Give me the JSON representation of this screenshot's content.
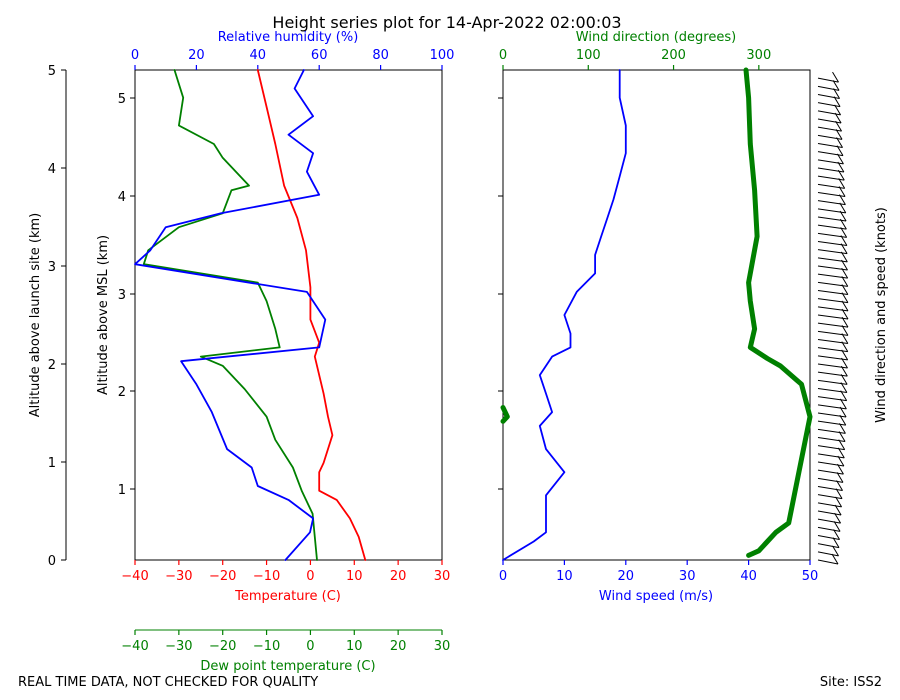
{
  "chart_data": {
    "type": "line",
    "title": "Height series plot for 14-Apr-2022 02:00:03",
    "footer_left": "REAL TIME DATA, NOT CHECKED FOR QUALITY",
    "footer_right": "Site: ISS2",
    "left_panel": {
      "outer_axis": {
        "label": "Altitude above launch site (km)",
        "range": [
          0,
          5
        ],
        "ticks": [
          "0",
          "1",
          "2",
          "3",
          "4",
          "5"
        ]
      },
      "inner_axis": {
        "label": "Altitude above MSL (km)",
        "ticks": [
          "1",
          "2",
          "3",
          "4",
          "5"
        ]
      },
      "humidity_axis": {
        "label": "Relative humidity (%)",
        "range": [
          0,
          100
        ],
        "ticks": [
          "0",
          "20",
          "40",
          "60",
          "80",
          "100"
        ],
        "color": "#0000ff"
      },
      "temperature_axis": {
        "label": "Temperature (C)",
        "range": [
          -40,
          30
        ],
        "ticks": [
          "−40",
          "−30",
          "−20",
          "−10",
          "0",
          "10",
          "20",
          "30"
        ],
        "color": "#ff0000"
      },
      "dewpoint_axis": {
        "label": "Dew point temperature (C)",
        "range": [
          -40,
          30
        ],
        "ticks": [
          "−40",
          "−30",
          "−20",
          "−10",
          "0",
          "10",
          "20",
          "30"
        ],
        "color": "#008000"
      },
      "series": [
        {
          "name": "Temperature",
          "color": "#ff0000",
          "units": "C",
          "points": [
            [
              12.5,
              0
            ],
            [
              11,
              0.25
            ],
            [
              9,
              0.45
            ],
            [
              6,
              0.65
            ],
            [
              2,
              0.75
            ],
            [
              2,
              0.95
            ],
            [
              3,
              1.05
            ],
            [
              5,
              1.35
            ],
            [
              4,
              1.55
            ],
            [
              3,
              1.8
            ],
            [
              1,
              2.2
            ],
            [
              2,
              2.35
            ],
            [
              0,
              2.6
            ],
            [
              0,
              2.95
            ],
            [
              -1,
              3.35
            ],
            [
              -3,
              3.7
            ],
            [
              -6,
              4.05
            ],
            [
              -8,
              4.5
            ],
            [
              -10,
              4.9
            ],
            [
              -12,
              5.3
            ]
          ]
        },
        {
          "name": "Dew point",
          "color": "#008000",
          "units": "C",
          "points": [
            [
              1.5,
              0
            ],
            [
              1,
              0.25
            ],
            [
              0.5,
              0.5
            ],
            [
              -2,
              0.75
            ],
            [
              -4,
              1.0
            ],
            [
              -8,
              1.3
            ],
            [
              -10,
              1.55
            ],
            [
              -15,
              1.85
            ],
            [
              -20,
              2.1
            ],
            [
              -25,
              2.2
            ],
            [
              -7,
              2.3
            ],
            [
              -8,
              2.5
            ],
            [
              -10,
              2.8
            ],
            [
              -12,
              3.0
            ],
            [
              -38,
              3.2
            ],
            [
              -37,
              3.35
            ],
            [
              -30,
              3.6
            ],
            [
              -20,
              3.75
            ],
            [
              -18,
              4.0
            ],
            [
              -14,
              4.05
            ],
            [
              -20,
              4.35
            ],
            [
              -22,
              4.5
            ],
            [
              -30,
              4.7
            ],
            [
              -29,
              5.0
            ],
            [
              -31,
              5.3
            ]
          ]
        },
        {
          "name": "Relative humidity",
          "color": "#0000ff",
          "units": "%",
          "points": [
            [
              49,
              0
            ],
            [
              57,
              0.3
            ],
            [
              58,
              0.45
            ],
            [
              50,
              0.65
            ],
            [
              40,
              0.8
            ],
            [
              38,
              1.0
            ],
            [
              30,
              1.2
            ],
            [
              25,
              1.6
            ],
            [
              20,
              1.9
            ],
            [
              15,
              2.15
            ],
            [
              60,
              2.3
            ],
            [
              62,
              2.6
            ],
            [
              56,
              2.9
            ],
            [
              0,
              3.2
            ],
            [
              5,
              3.35
            ],
            [
              10,
              3.6
            ],
            [
              28,
              3.75
            ],
            [
              60,
              3.95
            ],
            [
              56,
              4.2
            ],
            [
              58,
              4.4
            ],
            [
              50,
              4.6
            ],
            [
              58,
              4.8
            ],
            [
              52,
              5.1
            ],
            [
              55,
              5.3
            ]
          ]
        }
      ]
    },
    "right_panel": {
      "speed_axis": {
        "label": "Wind speed (m/s)",
        "range": [
          0,
          50
        ],
        "ticks": [
          "0",
          "10",
          "20",
          "30",
          "40",
          "50"
        ],
        "color": "#0000ff"
      },
      "direction_axis": {
        "label": "Wind direction (degrees)",
        "range": [
          0,
          360
        ],
        "ticks": [
          "0",
          "100",
          "200",
          "300"
        ],
        "color": "#008000"
      },
      "barb_label": "Wind direction and speed (knots)",
      "series": [
        {
          "name": "Wind speed",
          "color": "#0000ff",
          "units": "m/s",
          "points": [
            [
              0,
              0
            ],
            [
              5,
              0.2
            ],
            [
              7,
              0.3
            ],
            [
              7,
              0.7
            ],
            [
              10,
              0.95
            ],
            [
              7,
              1.2
            ],
            [
              6,
              1.45
            ],
            [
              8,
              1.6
            ],
            [
              7,
              1.8
            ],
            [
              6,
              2.0
            ],
            [
              8,
              2.2
            ],
            [
              11,
              2.3
            ],
            [
              11,
              2.45
            ],
            [
              10,
              2.65
            ],
            [
              12,
              2.9
            ],
            [
              15,
              3.1
            ],
            [
              15,
              3.3
            ],
            [
              16,
              3.5
            ],
            [
              17,
              3.7
            ],
            [
              18,
              3.9
            ],
            [
              19,
              4.15
            ],
            [
              20,
              4.4
            ],
            [
              20,
              4.7
            ],
            [
              19,
              5.0
            ],
            [
              19,
              5.3
            ]
          ]
        },
        {
          "name": "Wind direction",
          "color": "#008000",
          "units": "degrees",
          "points": [
            [
              0,
              1.5
            ],
            [
              5,
              1.55
            ],
            [
              0,
              1.65
            ]
          ]
        },
        {
          "name": "Wind direction",
          "color": "#008000",
          "units": "degrees",
          "points": [
            [
              288,
              0.05
            ],
            [
              300,
              0.1
            ],
            [
              310,
              0.2
            ],
            [
              320,
              0.3
            ],
            [
              335,
              0.4
            ],
            [
              360,
              1.55
            ],
            [
              350,
              1.9
            ],
            [
              325,
              2.1
            ],
            [
              310,
              2.18
            ],
            [
              290,
              2.3
            ],
            [
              295,
              2.5
            ],
            [
              290,
              2.8
            ],
            [
              288,
              3.0
            ],
            [
              298,
              3.5
            ],
            [
              295,
              4.0
            ],
            [
              290,
              4.5
            ],
            [
              288,
              5.0
            ],
            [
              285,
              5.3
            ]
          ]
        }
      ]
    }
  }
}
